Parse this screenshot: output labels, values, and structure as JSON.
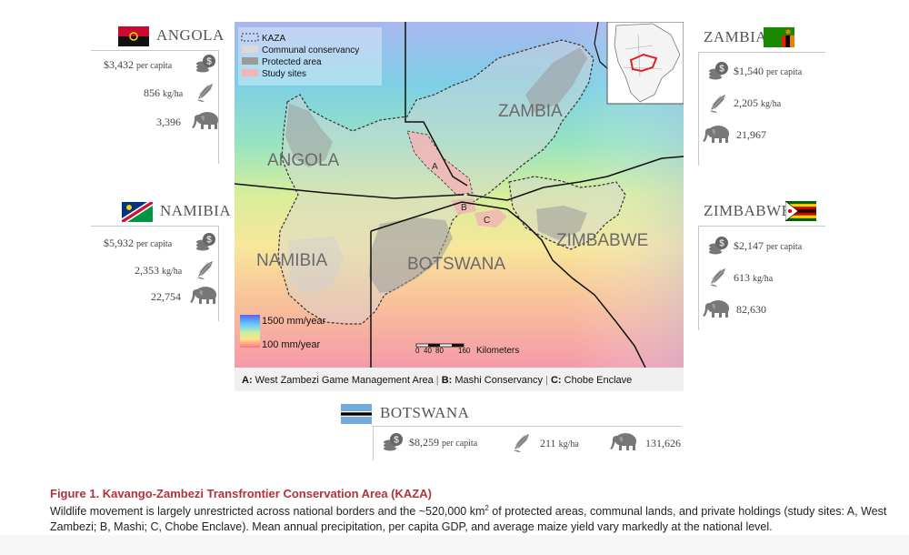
{
  "countries": {
    "angola": {
      "name": "ANGOLA",
      "gdp": "$3,432",
      "gdp_unit": "per capita",
      "maize": "856",
      "maize_unit": "kg/ha",
      "elephants": "3,396"
    },
    "zambia": {
      "name": "ZAMBIA",
      "gdp": "$1,540",
      "gdp_unit": "per capita",
      "maize": "2,205",
      "maize_unit": "kg/ha",
      "elephants": "21,967"
    },
    "namibia": {
      "name": "NAMIBIA",
      "gdp": "$5,932",
      "gdp_unit": "per capita",
      "maize": "2,353",
      "maize_unit": "kg/ha",
      "elephants": "22,754"
    },
    "zimbabwe": {
      "name": "ZIMBABWE",
      "gdp": "$2,147",
      "gdp_unit": "per capita",
      "maize": "613",
      "maize_unit": "kg/ha",
      "elephants": "82,630"
    },
    "botswana": {
      "name": "BOTSWANA",
      "gdp": "$8,259",
      "gdp_unit": "per capita",
      "maize": "211",
      "maize_unit": "kg/ha",
      "elephants": "131,626"
    }
  },
  "icons": [
    "coin-stack-icon",
    "maize-cob-icon",
    "elephant-icon"
  ],
  "map": {
    "legend": [
      "KAZA",
      "Communal conservancy",
      "Protected area",
      "Study sites"
    ],
    "country_labels": [
      "ZAMBIA",
      "ANGOLA",
      "NAMIBIA",
      "BOTSWANA",
      "ZIMBABWE"
    ],
    "site_labels": [
      "A",
      "B",
      "C"
    ],
    "precip_high": "1500 mm/year",
    "precip_low": "100 mm/year",
    "scale_ticks": [
      "0",
      "40",
      "80",
      "160"
    ],
    "scale_unit": "Kilometers",
    "site_key": {
      "a_letter": "A:",
      "a_text": "West Zambezi Game Management Area",
      "b_letter": "B:",
      "b_text": "Mashi Conservancy",
      "c_letter": "C:",
      "c_text": "Chobe Enclave"
    }
  },
  "caption": {
    "title": "Figure 1.  Kavango-Zambezi Transfrontier Conservation Area (KAZA)",
    "body_pre": "Wildlife movement is largely unrestricted across national borders and the ~520,000 km",
    "body_sup": "2",
    "body_post": " of protected areas, communal lands, and private holdings (study sites: A, West Zambezi; B, Mashi; C, Chobe Enclave). Mean annual precipitation, per capita GDP, and average maize yield vary markedly at the national level."
  },
  "colors": {
    "caption_title": "#b0323a",
    "kaza_outline": "#333333",
    "study_sites": "#f2b5b5"
  }
}
